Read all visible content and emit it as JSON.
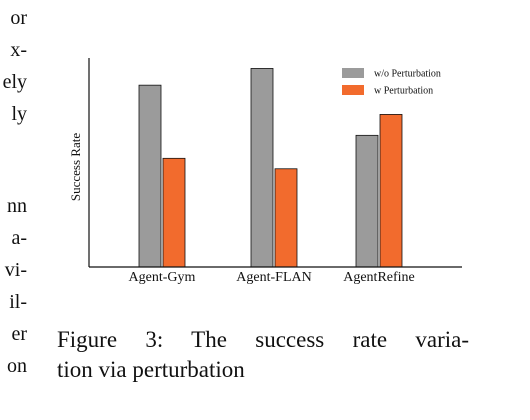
{
  "left_fragments": [
    "or",
    "x-",
    "ely",
    "ly",
    "",
    "nn",
    "a-",
    "vi-",
    "il-",
    "er",
    "on"
  ],
  "caption": {
    "line1": "Figure 3:  The success rate varia-",
    "line2": "tion via perturbation"
  },
  "chart_data": {
    "type": "bar",
    "title": "",
    "xlabel": "",
    "ylabel": "Success Rate",
    "categories": [
      "Agent-Gym",
      "Agent-FLAN",
      "AgentRefine"
    ],
    "series": [
      {
        "name": "w/o Perturbation",
        "color": "#9b9b9b",
        "values": [
          0.87,
          0.95,
          0.63
        ]
      },
      {
        "name": "w Perturbation",
        "color": "#f26b2d",
        "values": [
          0.52,
          0.47,
          0.73
        ]
      }
    ],
    "ylim": [
      0,
      1
    ],
    "grid": false,
    "legend_position": "top-right"
  }
}
